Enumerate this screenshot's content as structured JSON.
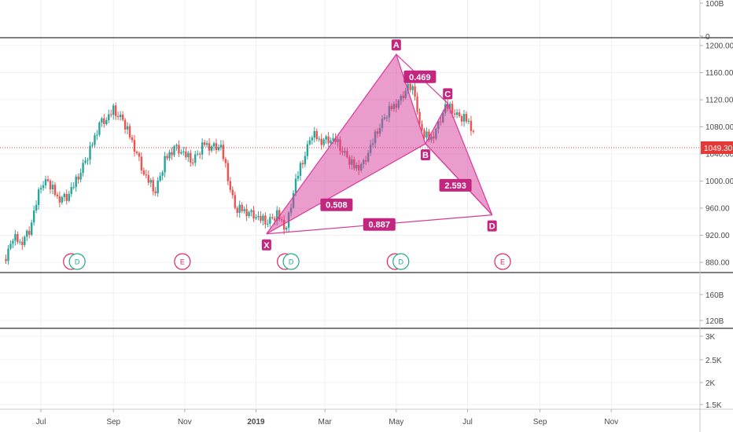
{
  "chart_data": [
    {
      "type": "line",
      "pane": "volume-top",
      "y_ticks": [
        "100B",
        "0"
      ]
    },
    {
      "type": "candlestick",
      "pane": "price",
      "x_ticks": [
        "Jul",
        "Sep",
        "Nov",
        "2019",
        "Mar",
        "May",
        "Jul",
        "Sep",
        "Nov"
      ],
      "y_ticks": [
        1200,
        1160,
        1120,
        1080,
        1040,
        1000,
        960,
        920,
        880
      ],
      "y_tick_labels": [
        "1200.00",
        "1160.00",
        "1120.00",
        "1080.00",
        "1040.00",
        "1000.00",
        "960.00",
        "920.00",
        "880.00"
      ],
      "ylim": [
        868,
        1210
      ],
      "last_price": 1049.3,
      "last_price_label": "1049.30",
      "colors": {
        "up": "#26a69a",
        "down": "#ef5350",
        "pattern": "#d63a9a",
        "last_price": "#e53935"
      },
      "harmonic_pattern": {
        "points": [
          {
            "label": "X",
            "date": "2019-01-10",
            "price": 922
          },
          {
            "label": "A",
            "date": "2019-05-01",
            "price": 1187
          },
          {
            "label": "B",
            "date": "2019-05-26",
            "price": 1055
          },
          {
            "label": "C",
            "date": "2019-06-14",
            "price": 1115
          },
          {
            "label": "D",
            "date": "2019-07-22",
            "price": 950
          }
        ],
        "ratios": [
          {
            "value": "0.469",
            "between": "A-C"
          },
          {
            "value": "0.508",
            "between": "X-B"
          },
          {
            "value": "2.593",
            "between": "B-D"
          },
          {
            "value": "0.887",
            "between": "X-D"
          }
        ]
      },
      "events": [
        {
          "label": "E",
          "date": "2018-07-27"
        },
        {
          "label": "D",
          "date": "2018-08-01"
        },
        {
          "label": "E",
          "date": "2018-10-30"
        },
        {
          "label": "E",
          "date": "2019-01-26"
        },
        {
          "label": "D",
          "date": "2019-01-31"
        },
        {
          "label": "E",
          "date": "2019-04-30"
        },
        {
          "label": "D",
          "date": "2019-05-05"
        },
        {
          "label": "E",
          "date": "2019-07-31"
        }
      ]
    },
    {
      "type": "line",
      "pane": "volume-middle",
      "y_ticks": [
        "160B",
        "120B"
      ]
    },
    {
      "type": "line",
      "pane": "volume-bottom",
      "y_ticks": [
        "3K",
        "2.5K",
        "2K",
        "1.5K"
      ]
    }
  ]
}
